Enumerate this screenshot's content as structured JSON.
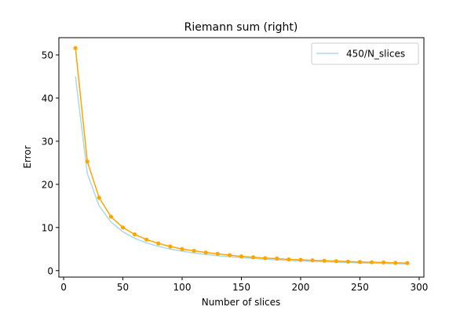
{
  "chart_data": {
    "type": "line",
    "title": "Riemann sum (right)",
    "xlabel": "Number of slices",
    "ylabel": "Error",
    "xlim": [
      -4.0,
      304.0
    ],
    "ylim": [
      -1.5,
      54.0
    ],
    "xticks": [
      0,
      50,
      100,
      150,
      200,
      250,
      300
    ],
    "yticks": [
      0,
      10,
      20,
      30,
      40,
      50
    ],
    "grid": false,
    "legend_position": "top-right",
    "x": [
      10,
      20,
      30,
      40,
      50,
      60,
      70,
      80,
      90,
      100,
      110,
      120,
      130,
      140,
      150,
      160,
      170,
      180,
      190,
      200,
      210,
      220,
      230,
      240,
      250,
      260,
      270,
      280,
      290
    ],
    "series": [
      {
        "name": "450/N_slices",
        "color": "#add8e6",
        "marker": "none",
        "in_legend": true,
        "values": [
          45.0,
          22.5,
          15.0,
          11.25,
          9.0,
          7.5,
          6.43,
          5.63,
          5.0,
          4.5,
          4.09,
          3.75,
          3.46,
          3.21,
          3.0,
          2.81,
          2.65,
          2.5,
          2.37,
          2.25,
          2.14,
          2.05,
          1.96,
          1.88,
          1.8,
          1.73,
          1.67,
          1.61,
          1.55
        ]
      },
      {
        "color": "#ffa500",
        "marker": "circle",
        "in_legend": false,
        "values": [
          51.6,
          25.3,
          16.9,
          12.5,
          10.0,
          8.4,
          7.2,
          6.3,
          5.6,
          5.0,
          4.6,
          4.2,
          3.9,
          3.6,
          3.3,
          3.1,
          2.9,
          2.8,
          2.6,
          2.5,
          2.4,
          2.3,
          2.2,
          2.1,
          2.0,
          1.95,
          1.9,
          1.8,
          1.75
        ]
      }
    ]
  }
}
